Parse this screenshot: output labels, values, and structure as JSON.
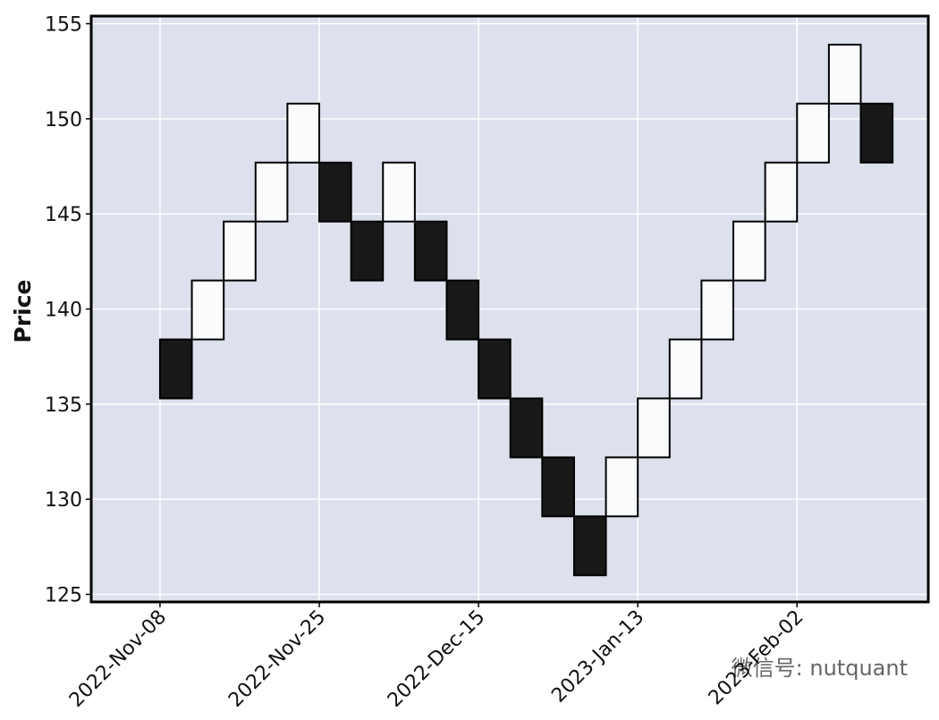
{
  "chart_data": {
    "type": "renko",
    "y_label": "Price",
    "watermark": "微信号: nutquant",
    "open": [
      138.4,
      138.4,
      141.5,
      144.6,
      147.7,
      147.7,
      144.6,
      144.6,
      144.6,
      141.5,
      138.4,
      135.3,
      132.2,
      129.1,
      129.1,
      132.2,
      135.3,
      138.4,
      141.5,
      144.6,
      147.7,
      150.8,
      150.8
    ],
    "close": [
      135.3,
      141.5,
      144.6,
      147.7,
      150.8,
      144.6,
      141.5,
      147.7,
      141.5,
      138.4,
      135.3,
      132.2,
      129.1,
      126.0,
      132.2,
      135.3,
      138.4,
      141.5,
      144.6,
      147.7,
      150.8,
      153.9,
      147.7
    ],
    "up_color": "#fafbfd",
    "down_color": "#181818",
    "edge_color": "#000000",
    "xlim": [
      -2.16,
      24.12
    ],
    "xticks": [
      {
        "value": 0,
        "label": "2022-Nov-08"
      },
      {
        "value": 5,
        "label": "2022-Nov-25"
      },
      {
        "value": 10,
        "label": "2022-Dec-15"
      },
      {
        "value": 15,
        "label": "2023-Jan-13"
      },
      {
        "value": 20,
        "label": "2023-Feb-02"
      }
    ],
    "ylim": [
      124.6,
      155.4
    ],
    "yticks": [
      125,
      130,
      135,
      140,
      145,
      150,
      155
    ],
    "grid": true,
    "background": "#dce1ed"
  }
}
